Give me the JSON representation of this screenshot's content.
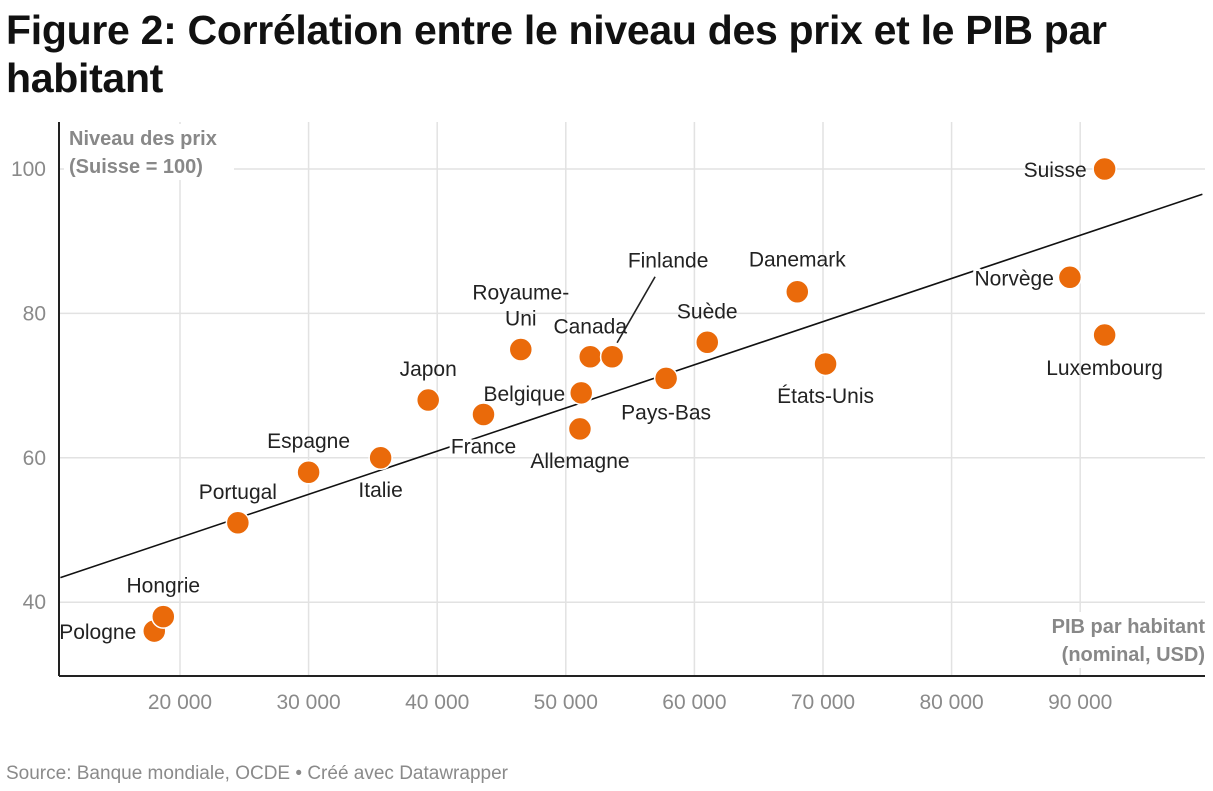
{
  "title": "Figure 2: Corrélation entre le niveau des prix et le PIB par habitant",
  "footer": {
    "source": "Source: Banque mondiale, OCDE",
    "separator": "•",
    "credit": "Créé avec Datawrapper"
  },
  "chart_data": {
    "type": "scatter",
    "ylabel": [
      "Niveau des prix",
      "(Suisse = 100)"
    ],
    "xlabel": [
      "PIB par habitant",
      "(nominal, USD)"
    ],
    "xlim": [
      10700,
      99500
    ],
    "ylim": [
      30,
      106
    ],
    "x_ticks": [
      20000,
      30000,
      40000,
      50000,
      60000,
      70000,
      80000,
      90000
    ],
    "x_tick_labels": [
      "20 000",
      "30 000",
      "40 000",
      "50 000",
      "60 000",
      "70 000",
      "80 000",
      "90 000"
    ],
    "y_ticks": [
      40,
      60,
      80,
      100
    ],
    "y_tick_labels": [
      "40",
      "60",
      "80",
      "100"
    ],
    "grid": true,
    "point_color": "#ea6a0a",
    "trendline": {
      "x": [
        10700,
        99500
      ],
      "y": [
        43.4,
        96.5
      ]
    },
    "points": [
      {
        "label": "Pologne",
        "x": 18000,
        "y": 36
      },
      {
        "label": "Hongrie",
        "x": 18700,
        "y": 38
      },
      {
        "label": "Portugal",
        "x": 24500,
        "y": 51
      },
      {
        "label": "Espagne",
        "x": 30000,
        "y": 58
      },
      {
        "label": "Italie",
        "x": 35600,
        "y": 60
      },
      {
        "label": "Japon",
        "x": 39300,
        "y": 68
      },
      {
        "label": "France",
        "x": 43600,
        "y": 66
      },
      {
        "label": "Royaume-Uni",
        "x": 46500,
        "y": 75
      },
      {
        "label": "Allemagne",
        "x": 51100,
        "y": 64
      },
      {
        "label": "Belgique",
        "x": 51200,
        "y": 69
      },
      {
        "label": "Canada",
        "x": 51900,
        "y": 74
      },
      {
        "label": "Finlande",
        "x": 53600,
        "y": 74
      },
      {
        "label": "Pays-Bas",
        "x": 57800,
        "y": 71
      },
      {
        "label": "Suède",
        "x": 61000,
        "y": 76
      },
      {
        "label": "Danemark",
        "x": 68000,
        "y": 83
      },
      {
        "label": "États-Unis",
        "x": 70200,
        "y": 73
      },
      {
        "label": "Norvège",
        "x": 89200,
        "y": 85
      },
      {
        "label": "Luxembourg",
        "x": 91900,
        "y": 77
      },
      {
        "label": "Suisse",
        "x": 91900,
        "y": 100
      }
    ]
  }
}
